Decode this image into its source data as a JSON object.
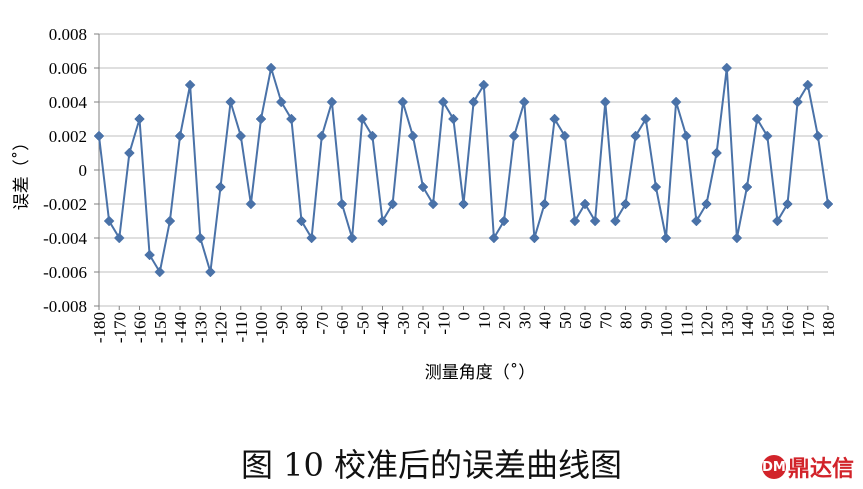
{
  "chart_data": {
    "type": "line",
    "title": "",
    "xlabel": "测量角度（˚）",
    "ylabel": "误差（˚）",
    "x": [
      -180,
      -175,
      -170,
      -165,
      -160,
      -155,
      -150,
      -145,
      -140,
      -135,
      -130,
      -125,
      -120,
      -115,
      -110,
      -105,
      -100,
      -95,
      -90,
      -85,
      -80,
      -75,
      -70,
      -65,
      -60,
      -55,
      -50,
      -45,
      -40,
      -35,
      -30,
      -25,
      -20,
      -15,
      -10,
      -5,
      0,
      5,
      10,
      15,
      20,
      25,
      30,
      35,
      40,
      45,
      50,
      55,
      60,
      65,
      70,
      75,
      80,
      85,
      90,
      95,
      100,
      105,
      110,
      115,
      120,
      125,
      130,
      135,
      140,
      145,
      150,
      155,
      160,
      165,
      170,
      175,
      180
    ],
    "y": [
      0.002,
      -0.003,
      -0.004,
      0.001,
      0.003,
      -0.005,
      -0.006,
      -0.003,
      0.002,
      0.005,
      -0.004,
      -0.006,
      -0.001,
      0.004,
      0.002,
      -0.002,
      0.003,
      0.006,
      0.004,
      0.003,
      -0.003,
      -0.004,
      0.002,
      0.004,
      -0.002,
      -0.004,
      0.003,
      0.002,
      -0.003,
      -0.002,
      0.004,
      0.002,
      -0.001,
      -0.002,
      0.004,
      0.003,
      -0.002,
      0.004,
      0.005,
      -0.004,
      -0.003,
      0.002,
      0.004,
      -0.004,
      -0.002,
      0.003,
      0.002,
      -0.003,
      -0.002,
      -0.003,
      0.004,
      -0.003,
      -0.002,
      0.002,
      0.003,
      -0.001,
      -0.004,
      0.004,
      0.002,
      -0.003,
      -0.002,
      0.001,
      0.006,
      -0.004,
      -0.001,
      0.003,
      0.002,
      -0.003,
      -0.002,
      0.004,
      0.005,
      0.002,
      -0.002
    ],
    "x_tick_labels": [
      "-180",
      "-170",
      "-160",
      "-150",
      "-140",
      "-130",
      "-120",
      "-110",
      "-100",
      "-90",
      "-80",
      "-70",
      "-60",
      "-50",
      "-40",
      "-30",
      "-20",
      "-10",
      "0",
      "10",
      "20",
      "30",
      "40",
      "50",
      "60",
      "70",
      "80",
      "90",
      "100",
      "110",
      "120",
      "130",
      "140",
      "150",
      "160",
      "170",
      "180"
    ],
    "y_tick_labels": [
      "0.008",
      "0.006",
      "0.004",
      "0.002",
      "0",
      "-0.002",
      "-0.004",
      "-0.006",
      "-0.008"
    ],
    "xlim": [
      -180,
      180
    ],
    "ylim": [
      -0.008,
      0.008
    ],
    "y_step": 0.002,
    "grid": true,
    "marker": "diamond",
    "line_color": "#4a72a8",
    "grid_color": "#bfbfbf"
  },
  "caption": "图 10 校准后的误差曲线图",
  "logo_text": "鼎达信",
  "logo_mark": "DM"
}
